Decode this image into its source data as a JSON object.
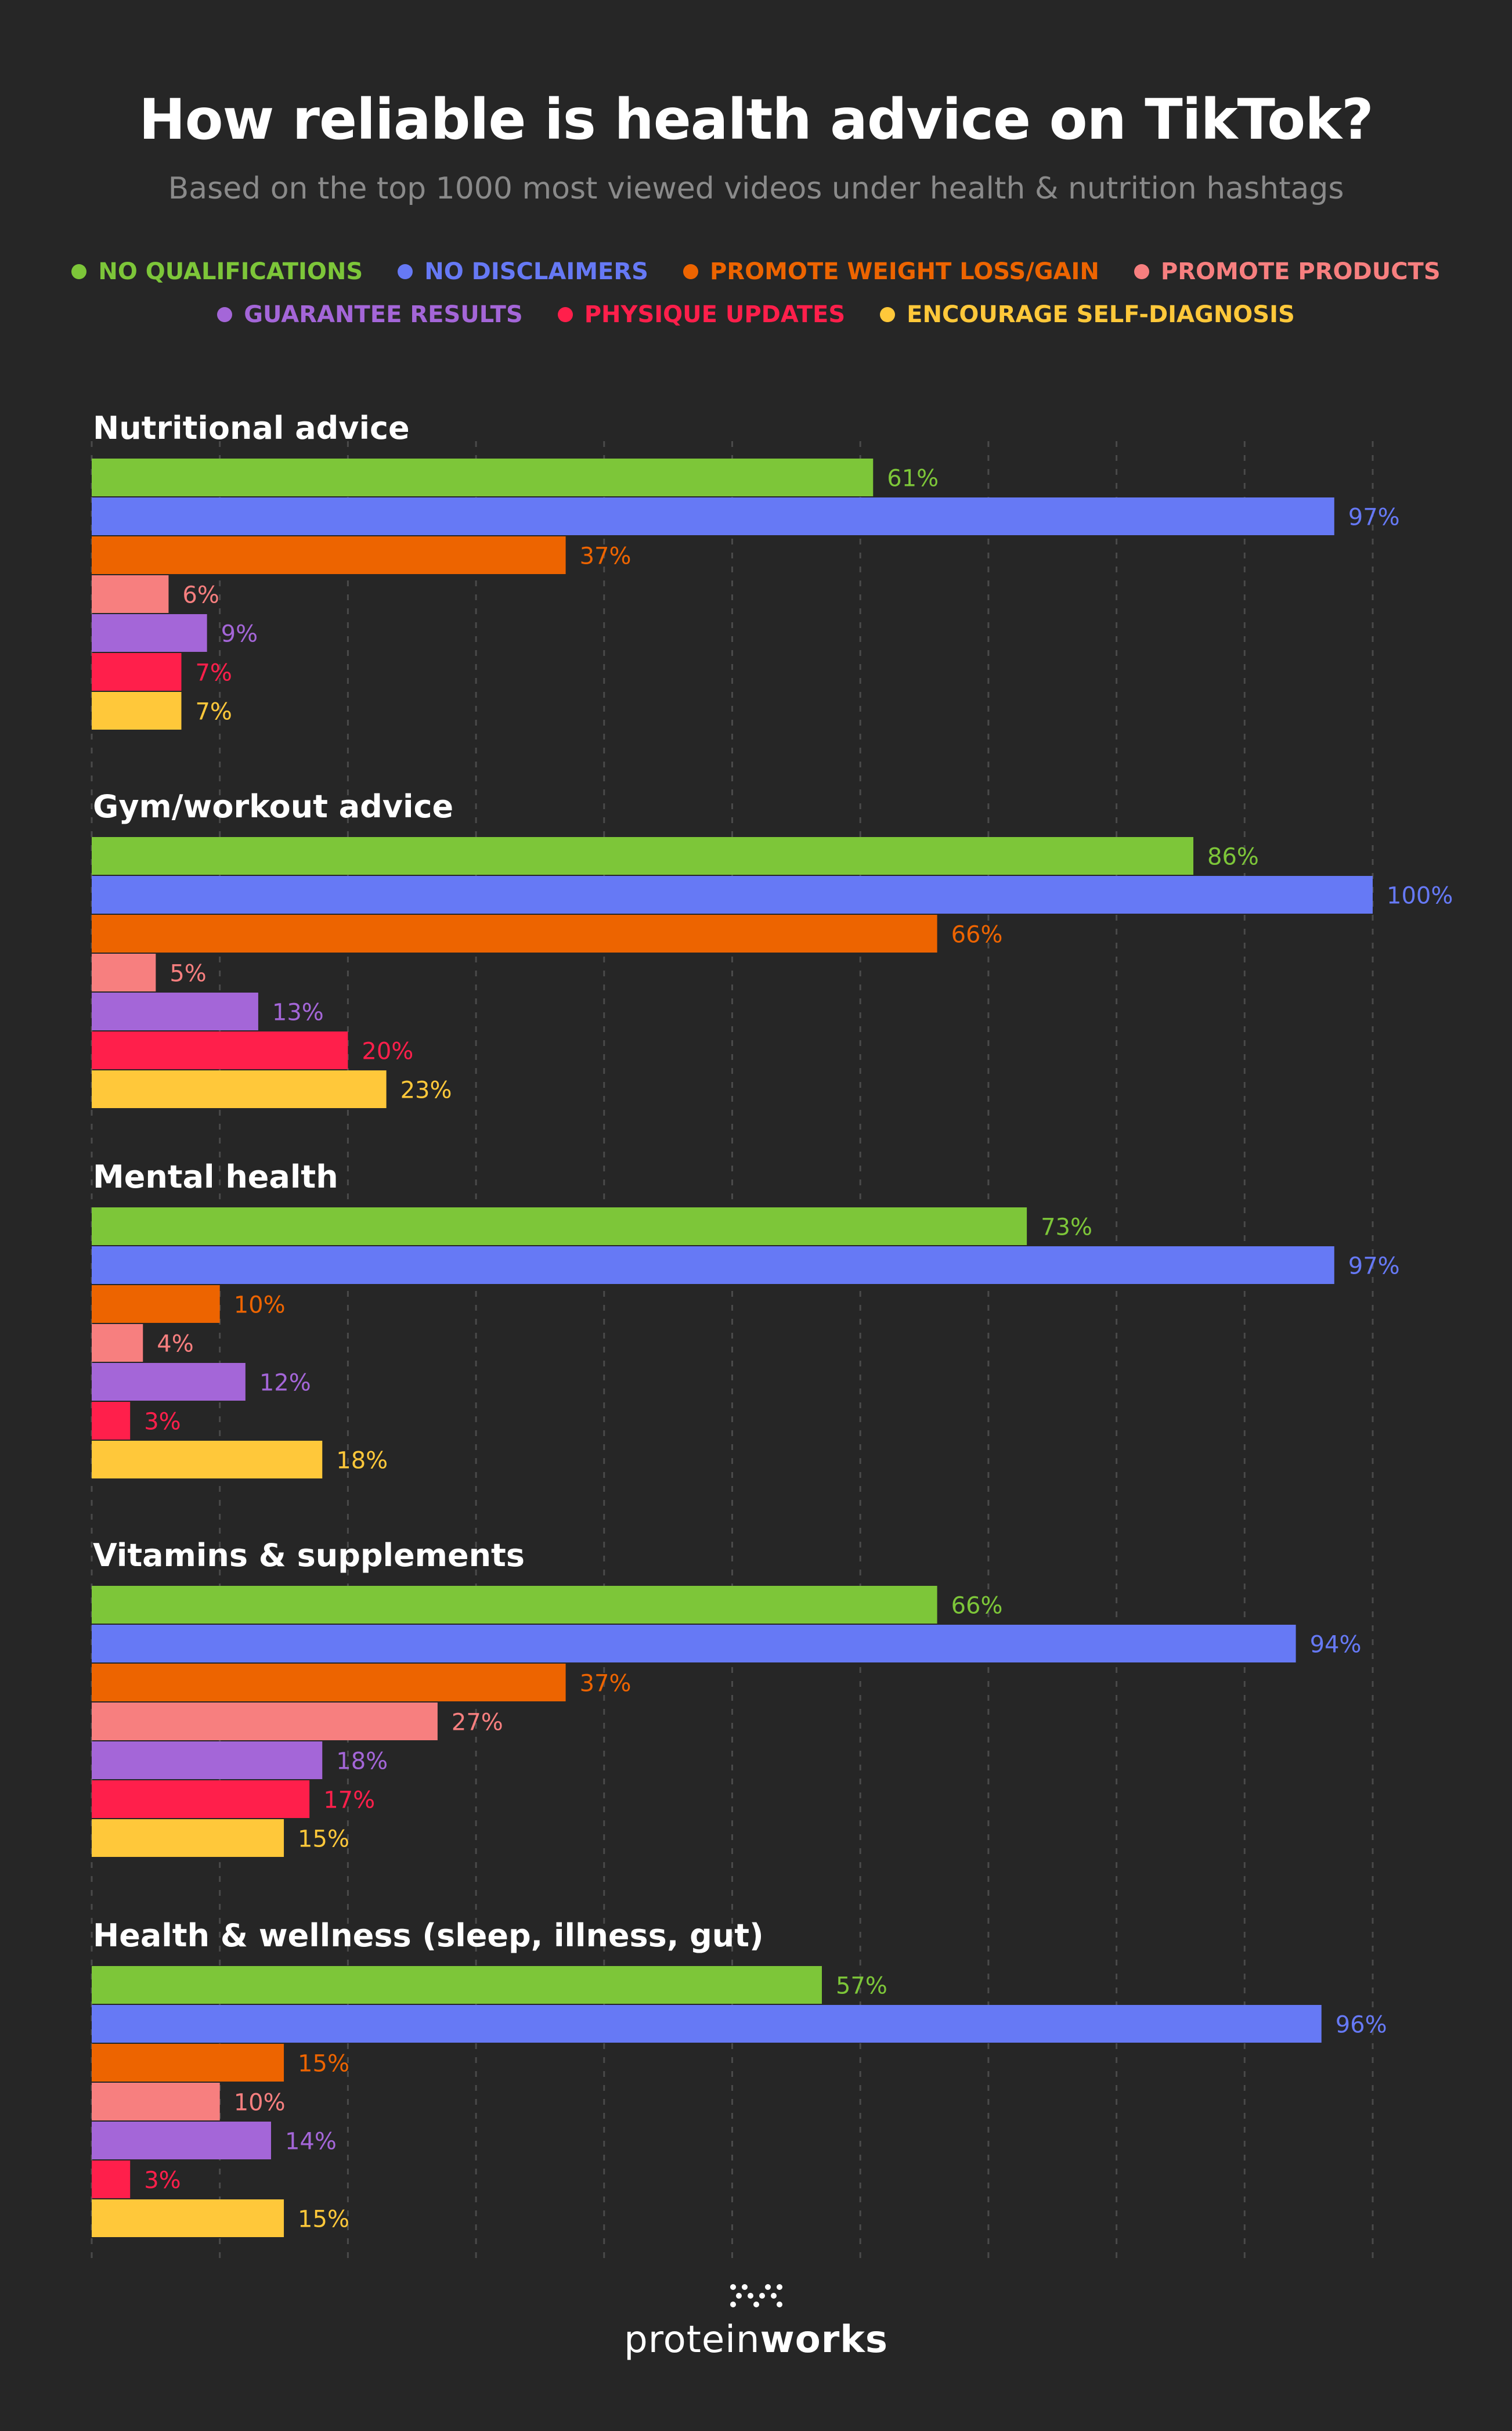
{
  "chart_data": {
    "type": "bar",
    "orientation": "horizontal",
    "title": "How reliable is health advice on TikTok?",
    "subtitle": "Based on the top 1000 most viewed videos under health & nutrition hashtags",
    "value_suffix": "%",
    "xlim": [
      0,
      100
    ],
    "grid": true,
    "legend_placement": "top",
    "series": [
      {
        "name": "NO QUALIFICATIONS",
        "color": "#7dc639"
      },
      {
        "name": "NO DISCLAIMERS",
        "color": "#6679f5"
      },
      {
        "name": "PROMOTE WEIGHT LOSS/GAIN",
        "color": "#ed6400"
      },
      {
        "name": "PROMOTE PRODUCTS",
        "color": "#f77f7f"
      },
      {
        "name": "GUARANTEE RESULTS",
        "color": "#a466d8"
      },
      {
        "name": "PHYSIQUE UPDATES",
        "color": "#ff1f4b"
      },
      {
        "name": "ENCOURAGE SELF-DIAGNOSIS",
        "color": "#ffc83a"
      }
    ],
    "groups": [
      {
        "label": "Nutritional advice",
        "values": [
          61,
          97,
          37,
          6,
          9,
          7,
          7
        ]
      },
      {
        "label": "Gym/workout advice",
        "values": [
          86,
          100,
          66,
          5,
          13,
          20,
          23
        ]
      },
      {
        "label": "Mental health",
        "values": [
          73,
          97,
          10,
          4,
          12,
          3,
          18
        ]
      },
      {
        "label": "Vitamins & supplements",
        "values": [
          66,
          94,
          37,
          27,
          18,
          17,
          15
        ]
      },
      {
        "label": "Health & wellness (sleep, illness, gut)",
        "values": [
          57,
          96,
          15,
          10,
          14,
          3,
          15
        ]
      }
    ]
  },
  "brand": {
    "light": "protein",
    "bold": "works",
    "icon": "protein-works-logo-icon"
  }
}
